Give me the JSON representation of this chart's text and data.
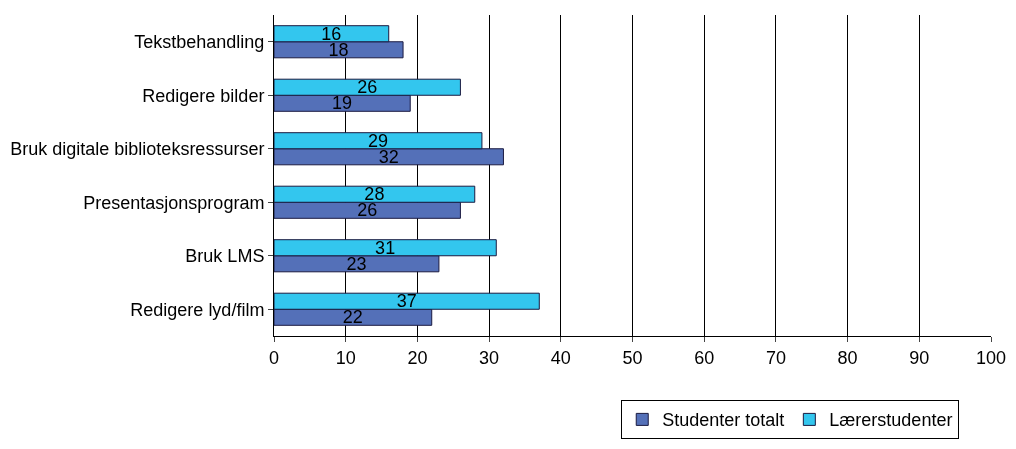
{
  "chart_data": {
    "type": "bar",
    "orientation": "horizontal",
    "categories": [
      "Tekstbehandling",
      "Redigere bilder",
      "Bruk digitale biblioteksressurser",
      "Presentasjonsprogram",
      "Bruk LMS",
      "Redigere lyd/film"
    ],
    "series": [
      {
        "name": "Studenter totalt",
        "color": "#5470b8",
        "values": [
          18,
          19,
          32,
          26,
          23,
          22
        ]
      },
      {
        "name": "Lærerstudenter",
        "color": "#33c6ee",
        "values": [
          16,
          26,
          29,
          28,
          31,
          37
        ]
      }
    ],
    "xlim": [
      0,
      100
    ],
    "xticks": [
      0,
      10,
      20,
      30,
      40,
      50,
      60,
      70,
      80,
      90,
      100
    ],
    "grid": "x",
    "legend": "bottom",
    "data_labels": true
  }
}
